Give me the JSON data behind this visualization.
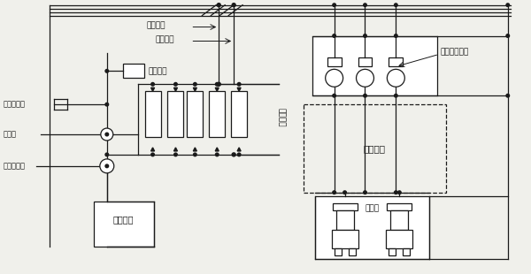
{
  "bg": "#f0f0eb",
  "lc": "#1a1a1a",
  "fs": 6.5,
  "lw": 0.9,
  "labels": {
    "supply": "供水母管",
    "return_pipe": "回水母管",
    "high_tank": "高位水算",
    "ion": "离子交换器",
    "pure_pump": "纯水泵",
    "gas_sep": "气水分离器",
    "heat_ex": "热交换器",
    "rectifier": "整流装置",
    "circ_pump": "循环冷却水泵",
    "cool_pool": "冷却水池",
    "cool_tower": "冷却塔"
  }
}
